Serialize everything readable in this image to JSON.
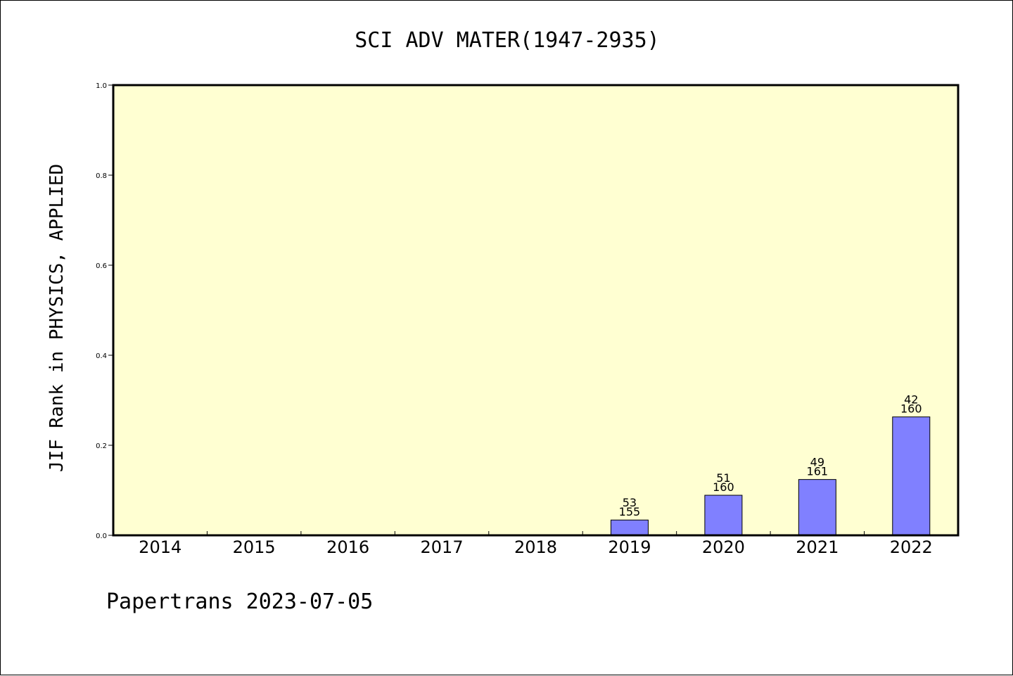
{
  "chart_data": {
    "type": "bar",
    "title": "SCI ADV MATER(1947-2935)",
    "ylabel": "JIF Rank in PHYSICS, APPLIED",
    "xlabel": "",
    "ylim": [
      0,
      1.0
    ],
    "yticks": [
      "0.0",
      "0.2",
      "0.4",
      "0.6",
      "0.8",
      "1.0"
    ],
    "categories": [
      "2014",
      "2015",
      "2016",
      "2017",
      "2018",
      "2019",
      "2020",
      "2021",
      "2022"
    ],
    "values": [
      0,
      0,
      0,
      0,
      0,
      0.034,
      0.089,
      0.124,
      0.263
    ],
    "rank_labels": [
      null,
      null,
      null,
      null,
      null,
      {
        "rank": "53",
        "total": "155"
      },
      {
        "rank": "51",
        "total": "160"
      },
      {
        "rank": "49",
        "total": "161"
      },
      {
        "rank": "42",
        "total": "160"
      }
    ],
    "grid": false,
    "colors": {
      "plot_background": "#ffffd2",
      "bar_fill": "#8080ff",
      "bar_stroke": "#000000"
    }
  },
  "footer": {
    "text": "Papertrans 2023-07-05"
  }
}
